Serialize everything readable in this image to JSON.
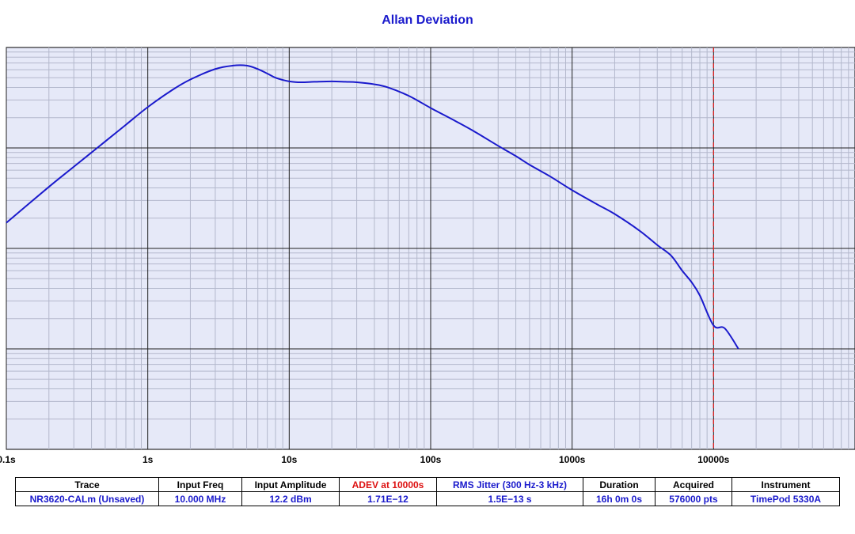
{
  "chart_data": {
    "type": "line",
    "title": "Allan Deviation",
    "x_scale": "log",
    "y_scale": "log",
    "xlim": [
      0.1,
      100000
    ],
    "ylim": [
      1e-13,
      1e-09
    ],
    "x_tick_values": [
      0.1,
      1,
      10,
      100,
      1000,
      10000
    ],
    "x_tick_labels": [
      "0.1s",
      "1s",
      "10s",
      "100s",
      "1000s",
      "10000s"
    ],
    "grid": true,
    "marker_x": 10000,
    "marker_color": "#dd2222",
    "line_color": "#1a1acc",
    "background_color": "#e6e9f8",
    "series": [
      {
        "x": [
          0.1,
          0.2,
          0.3,
          0.5,
          0.7,
          1,
          1.5,
          2,
          3,
          4,
          5,
          6,
          7,
          8,
          9,
          10,
          12,
          15,
          20,
          25,
          30,
          40,
          50,
          70,
          100,
          150,
          200,
          300,
          400,
          500,
          700,
          1000,
          1500,
          2000,
          3000,
          4000,
          5000,
          6000,
          7000,
          8000,
          10000,
          12000,
          15000
        ],
        "y": [
          1.8e-11,
          4.1e-11,
          6.5e-11,
          1.16e-10,
          1.7e-10,
          2.55e-10,
          3.8e-10,
          4.8e-10,
          6.1e-10,
          6.6e-10,
          6.6e-10,
          6.1e-10,
          5.5e-10,
          5e-10,
          4.75e-10,
          4.6e-10,
          4.5e-10,
          4.55e-10,
          4.6e-10,
          4.55e-10,
          4.5e-10,
          4.3e-10,
          4e-10,
          3.3e-10,
          2.5e-10,
          1.85e-10,
          1.48e-10,
          1.05e-10,
          8.3e-11,
          6.8e-11,
          5.2e-11,
          3.8e-11,
          2.75e-11,
          2.2e-11,
          1.5e-11,
          1.08e-11,
          8.5e-12,
          6e-12,
          4.6e-12,
          3.4e-12,
          1.71e-12,
          1.6e-12,
          1e-12
        ]
      }
    ]
  },
  "table": {
    "headers": [
      "Trace",
      "Input Freq",
      "Input Amplitude",
      "ADEV at 10000s",
      "RMS Jitter (300 Hz-3 kHz)",
      "Duration",
      "Acquired",
      "Instrument"
    ],
    "values": [
      "NR3620-CALm (Unsaved)",
      "10.000 MHz",
      "12.2 dBm",
      "1.71E−12",
      "1.5E−13 s",
      "16h 0m 0s",
      "576000 pts",
      "TimePod 5330A"
    ]
  }
}
